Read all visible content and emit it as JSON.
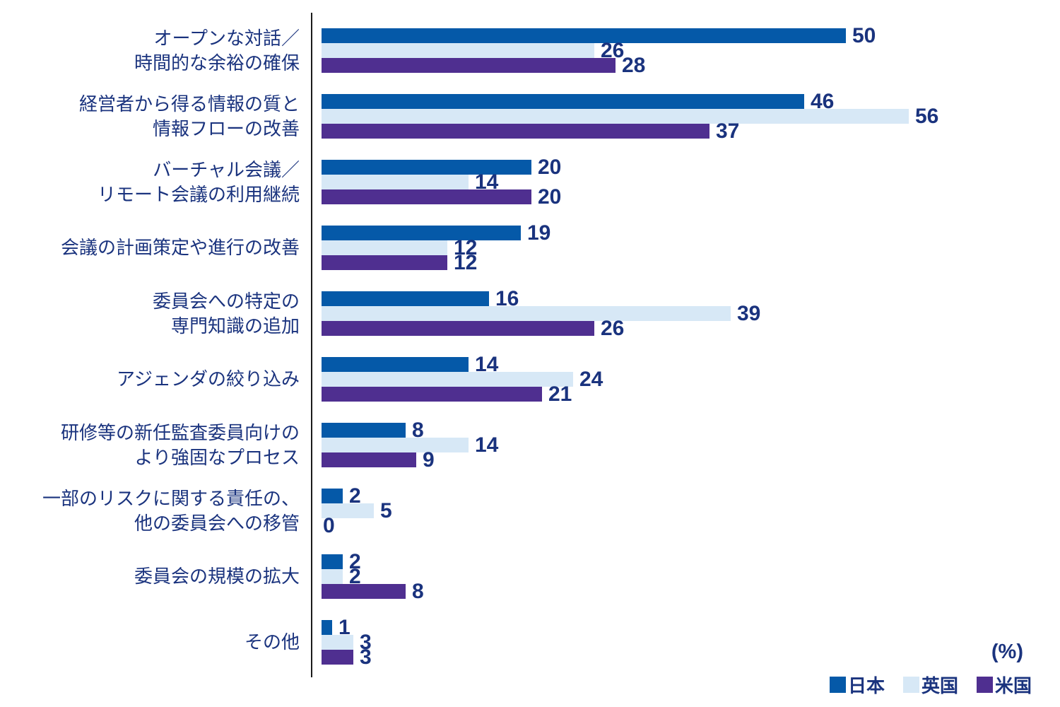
{
  "chart_data": {
    "type": "bar",
    "orientation": "horizontal",
    "title": "",
    "unit_label": "(%)",
    "value_unit": "%",
    "axis": {
      "value_min": 0,
      "value_max_shown": 56,
      "gridlines": false
    },
    "legend_position": "bottom-right",
    "text_color": "#1a337e",
    "series": [
      {
        "key": "japan",
        "name": "日本",
        "color": "#0559a8"
      },
      {
        "key": "uk",
        "name": "英国",
        "color": "#d7e8f6"
      },
      {
        "key": "us",
        "name": "米国",
        "color": "#4f2f90"
      }
    ],
    "categories": [
      {
        "label_lines": [
          "オープンな対話／",
          "時間的な余裕の確保"
        ],
        "values": [
          50,
          26,
          28
        ]
      },
      {
        "label_lines": [
          "経営者から得る情報の質と",
          "情報フローの改善"
        ],
        "values": [
          46,
          56,
          37
        ]
      },
      {
        "label_lines": [
          "バーチャル会議／",
          "リモート会議の利用継続"
        ],
        "values": [
          20,
          14,
          20
        ]
      },
      {
        "label_lines": [
          "会議の計画策定や進行の改善"
        ],
        "values": [
          19,
          12,
          12
        ]
      },
      {
        "label_lines": [
          "委員会への特定の",
          "専門知識の追加"
        ],
        "values": [
          16,
          39,
          26
        ]
      },
      {
        "label_lines": [
          "アジェンダの絞り込み"
        ],
        "values": [
          14,
          24,
          21
        ]
      },
      {
        "label_lines": [
          "研修等の新任監査委員向けの",
          "より強固なプロセス"
        ],
        "values": [
          8,
          14,
          9
        ]
      },
      {
        "label_lines": [
          "一部のリスクに関する責任の、",
          "他の委員会への移管"
        ],
        "values": [
          2,
          5,
          0
        ]
      },
      {
        "label_lines": [
          "委員会の規模の拡大"
        ],
        "values": [
          2,
          2,
          8
        ]
      },
      {
        "label_lines": [
          "その他"
        ],
        "values": [
          1,
          3,
          3
        ]
      }
    ]
  }
}
